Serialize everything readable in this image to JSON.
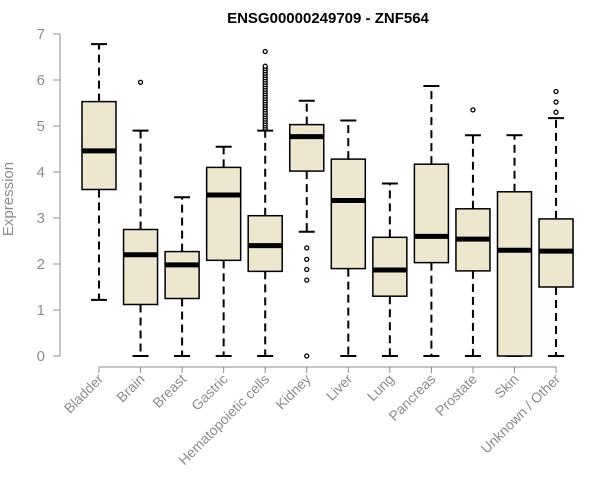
{
  "chart_data": {
    "type": "boxplot",
    "title": "ENSG00000249709 - ZNF564",
    "xlabel": "",
    "ylabel": "Expression",
    "ylim": [
      0,
      7
    ],
    "yticks": [
      0,
      1,
      2,
      3,
      4,
      5,
      6,
      7
    ],
    "box_fill": "#ede7d0",
    "categories": [
      "Bladder",
      "Brain",
      "Breast",
      "Gastric",
      "Hematopoietic cells",
      "Kidney",
      "Liver",
      "Lung",
      "Pancreas",
      "Prostate",
      "Skin",
      "Unknown / Other"
    ],
    "boxes": [
      {
        "name": "Bladder",
        "min": 1.22,
        "q1": 3.62,
        "median": 4.46,
        "q3": 5.53,
        "max": 6.78,
        "outliers": []
      },
      {
        "name": "Brain",
        "min": 0.0,
        "q1": 1.12,
        "median": 2.2,
        "q3": 2.75,
        "max": 4.9,
        "outliers": [
          5.95
        ]
      },
      {
        "name": "Breast",
        "min": 0.0,
        "q1": 1.25,
        "median": 1.98,
        "q3": 2.27,
        "max": 3.45,
        "outliers": []
      },
      {
        "name": "Gastric",
        "min": 0.0,
        "q1": 2.08,
        "median": 3.5,
        "q3": 4.1,
        "max": 4.55,
        "outliers": []
      },
      {
        "name": "Hematopoietic cells",
        "min": 0.0,
        "q1": 1.84,
        "median": 2.4,
        "q3": 3.05,
        "max": 4.9,
        "outliers": [
          4.95,
          5.0,
          5.05,
          5.1,
          5.15,
          5.2,
          5.25,
          5.3,
          5.35,
          5.4,
          5.45,
          5.5,
          5.55,
          5.6,
          5.65,
          5.7,
          5.75,
          5.8,
          5.85,
          5.9,
          5.95,
          6.0,
          6.05,
          6.1,
          6.15,
          6.2,
          6.25,
          6.3,
          6.62
        ]
      },
      {
        "name": "Kidney",
        "min": 2.7,
        "q1": 4.02,
        "median": 4.77,
        "q3": 5.03,
        "max": 5.55,
        "outliers": [
          0.0,
          1.65,
          1.88,
          2.1,
          2.35
        ]
      },
      {
        "name": "Liver",
        "min": 0.0,
        "q1": 1.9,
        "median": 3.38,
        "q3": 4.28,
        "max": 5.12,
        "outliers": []
      },
      {
        "name": "Lung",
        "min": 0.0,
        "q1": 1.3,
        "median": 1.87,
        "q3": 2.58,
        "max": 3.75,
        "outliers": []
      },
      {
        "name": "Pancreas",
        "min": 0.0,
        "q1": 2.03,
        "median": 2.6,
        "q3": 4.17,
        "max": 5.87,
        "outliers": []
      },
      {
        "name": "Prostate",
        "min": 0.0,
        "q1": 1.85,
        "median": 2.54,
        "q3": 3.2,
        "max": 4.8,
        "outliers": [
          5.35
        ]
      },
      {
        "name": "Skin",
        "min": 0.0,
        "q1": 0.0,
        "median": 2.3,
        "q3": 3.57,
        "max": 4.8,
        "outliers": []
      },
      {
        "name": "Unknown / Other",
        "min": 0.0,
        "q1": 1.5,
        "median": 2.28,
        "q3": 2.98,
        "max": 5.17,
        "outliers": [
          5.3,
          5.52,
          5.75
        ]
      }
    ]
  }
}
